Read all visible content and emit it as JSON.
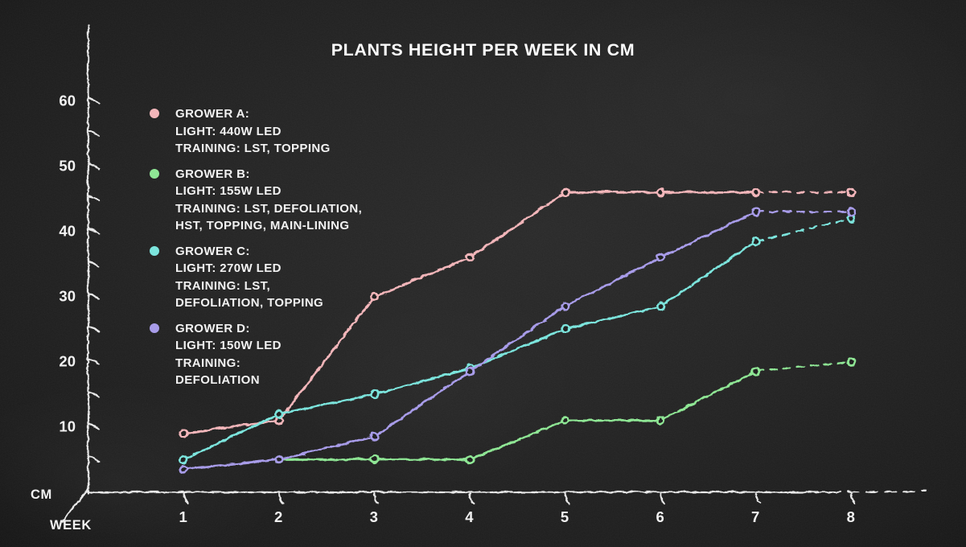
{
  "page": {
    "background_color": "#1f1f1f",
    "text_color": "#f2f2f2",
    "axis_color": "#e9e9e9"
  },
  "chart_data": {
    "type": "line",
    "title": "PLANTS HEIGHT PER WEEK IN CM",
    "xlabel": "WEEK",
    "ylabel": "CM",
    "x": [
      1,
      2,
      3,
      4,
      5,
      6,
      7,
      8
    ],
    "x_tick_labels": [
      "1",
      "2",
      "3",
      "4",
      "5",
      "6",
      "7",
      "8"
    ],
    "ylim": [
      0,
      65
    ],
    "y_minor_tick_step": 5,
    "y_labeled_ticks": [
      10,
      20,
      30,
      40,
      50,
      60
    ],
    "grid": false,
    "legend_position": "upper-left",
    "final_segment_dashed": true,
    "series": [
      {
        "id": "grower-a",
        "name": "Grower A",
        "color": "#f3b6ba",
        "values": [
          9,
          11,
          30,
          36,
          46,
          46,
          46,
          46
        ],
        "legend_lines": [
          "GROWER A:",
          "LIGHT: 440W LED",
          "TRAINING: LST, TOPPING"
        ]
      },
      {
        "id": "grower-b",
        "name": "Grower B",
        "color": "#8fe795",
        "values": [
          null,
          5,
          5,
          5,
          11,
          11,
          18.5,
          20
        ],
        "legend_lines": [
          "GROWER B:",
          "LIGHT: 155W LED",
          "TRAINING: LST, DEFOLIATION,",
          "HST, TOPPING, MAIN-LINING"
        ]
      },
      {
        "id": "grower-c",
        "name": "Grower C",
        "color": "#7ce5dd",
        "values": [
          5,
          12,
          15,
          19,
          25,
          28.5,
          38.5,
          42
        ],
        "legend_lines": [
          "GROWER C:",
          "LIGHT: 270W LED",
          "TRAINING: LST,",
          "DEFOLIATION, TOPPING"
        ]
      },
      {
        "id": "grower-d",
        "name": "Grower D",
        "color": "#a89ce9",
        "values": [
          3.5,
          5,
          8.5,
          18.5,
          28.5,
          36,
          43,
          43
        ],
        "legend_lines": [
          "GROWER D:",
          "LIGHT: 150W LED",
          "TRAINING:",
          "DEFOLIATION"
        ]
      }
    ]
  }
}
